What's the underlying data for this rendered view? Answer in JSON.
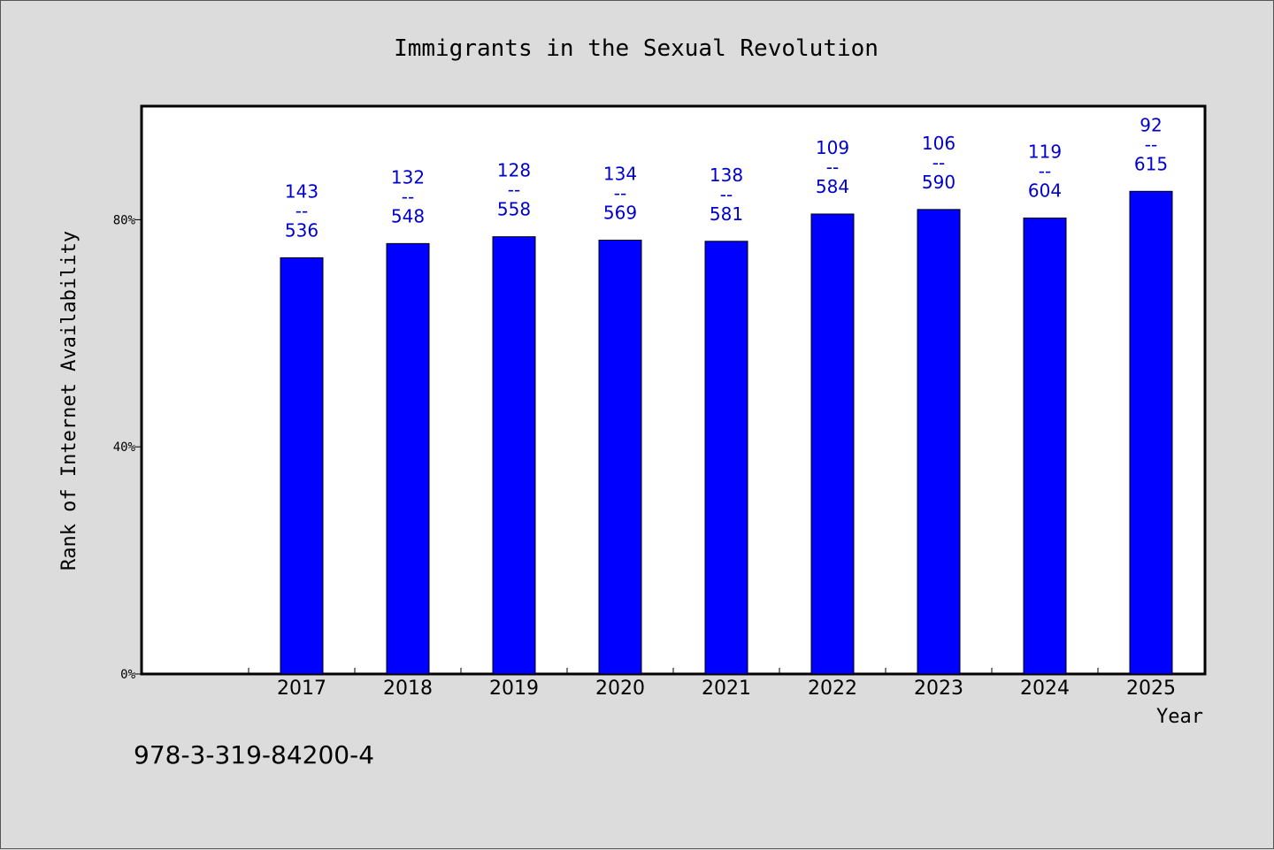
{
  "chart_data": {
    "type": "bar",
    "title": "Immigrants in the Sexual Revolution",
    "xlabel": "Year",
    "ylabel": "Rank of Internet Availability",
    "categories": [
      "2017",
      "2018",
      "2019",
      "2020",
      "2021",
      "2022",
      "2023",
      "2024",
      "2025"
    ],
    "values": [
      73.3,
      75.8,
      77.0,
      76.4,
      76.2,
      81.0,
      81.8,
      80.3,
      85.0
    ],
    "numerators": [
      "143",
      "132",
      "128",
      "134",
      "138",
      "109",
      "106",
      "119",
      "92"
    ],
    "separators": [
      "--",
      "--",
      "--",
      "--",
      "--",
      "--",
      "--",
      "--",
      "--"
    ],
    "denominators": [
      "536",
      "548",
      "558",
      "569",
      "581",
      "584",
      "590",
      "604",
      "615"
    ],
    "ylim": [
      0,
      100
    ],
    "yticks": [
      0,
      40,
      80
    ],
    "ytick_labels": [
      "0%",
      "40%",
      "80%"
    ],
    "grid": false,
    "bar_color": "#0000ff",
    "label_color": "#0000cc"
  },
  "footer": {
    "code": "978-3-319-84200-4"
  }
}
